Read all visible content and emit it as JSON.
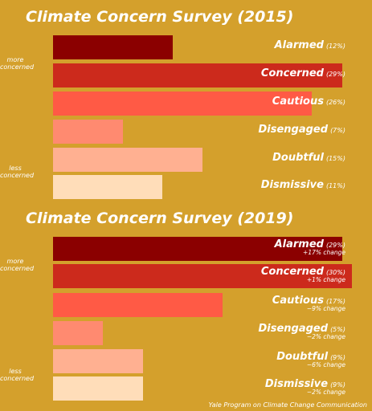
{
  "chart_data": [
    {
      "type": "bar",
      "title": "Climate Concern Survey (2015)",
      "side_labels": [
        "more concerned",
        "less concerned"
      ],
      "categories": [
        "Alarmed",
        "Concerned",
        "Cautious",
        "Disengaged",
        "Doubtful",
        "Dismissive"
      ],
      "values": [
        12,
        29,
        26,
        7,
        15,
        11
      ],
      "percent_labels": [
        "(12%)",
        "(29%)",
        "(26%)",
        "(7%)",
        "(15%)",
        "(11%)"
      ],
      "colors": [
        "#8b0000",
        "#cc2a1c",
        "#ff5a45",
        "#ff8a70",
        "#ffb091",
        "#ffddb9"
      ]
    },
    {
      "type": "bar",
      "title": "Climate Concern Survey (2019)",
      "side_labels": [
        "more concerned",
        "less concerned"
      ],
      "categories": [
        "Alarmed",
        "Concerned",
        "Cautious",
        "Disengaged",
        "Doubtful",
        "Dismissive"
      ],
      "values": [
        29,
        30,
        17,
        5,
        9,
        9
      ],
      "percent_labels": [
        "(29%)",
        "(30%)",
        "(17%)",
        "(5%)",
        "(9%)",
        "(9%)"
      ],
      "changes": [
        "+17% change",
        "+1% change",
        "−9% change",
        "−2% change",
        "−6% change",
        "−2% change"
      ],
      "colors": [
        "#8b0000",
        "#cc2a1c",
        "#ff5a45",
        "#ff8a70",
        "#ffb091",
        "#ffddb9"
      ]
    }
  ],
  "credit": "Yale Program on Climate Change Communication"
}
